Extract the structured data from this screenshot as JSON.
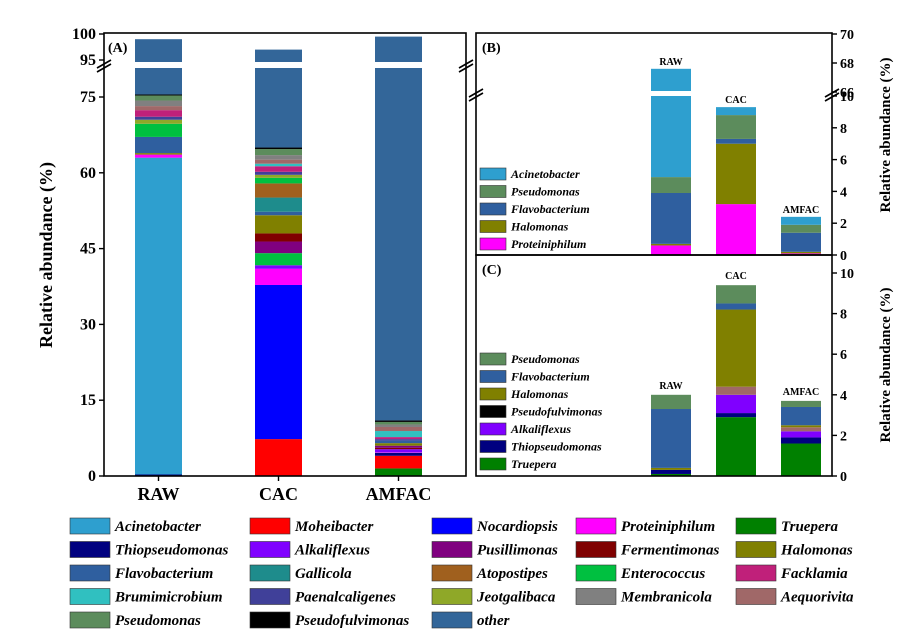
{
  "chart_data": [
    {
      "id": "A",
      "type": "bar",
      "stacked": true,
      "panel_label": "(A)",
      "ylabel": "Relative abundance (%)",
      "categories": [
        "RAW",
        "CAC",
        "AMFAC"
      ],
      "yticks": [
        "0",
        "15",
        "30",
        "45",
        "60",
        "75",
        "95",
        "100"
      ],
      "axis_break": [
        78,
        95
      ],
      "ylim": [
        0,
        100
      ],
      "series": [
        {
          "name": "Truepera",
          "color": "#008000",
          "values": [
            0,
            0,
            1.5
          ]
        },
        {
          "name": "Moheibacter",
          "color": "#ff0000",
          "values": [
            0,
            7.3,
            2.5
          ]
        },
        {
          "name": "Thiopseudomonas",
          "color": "#000080",
          "values": [
            0.3,
            0,
            0.6
          ]
        },
        {
          "name": "Nocardiopsis",
          "color": "#0000ff",
          "values": [
            0,
            30.5,
            0
          ]
        },
        {
          "name": "Acinetobacter",
          "color": "#2e9fcf",
          "values": [
            62.7,
            0,
            0
          ]
        },
        {
          "name": "Proteiniphilum",
          "color": "#ff00ff",
          "values": [
            0.6,
            3.2,
            0.1
          ]
        },
        {
          "name": "Alkaliflexus",
          "color": "#8000ff",
          "values": [
            0,
            0.7,
            0.6
          ]
        },
        {
          "name": "Fermentimonas",
          "color": "#800000",
          "values": [
            0,
            0,
            0.3
          ]
        },
        {
          "name": "Enterococcus",
          "color": "#00c040",
          "values": [
            0,
            2.4,
            0
          ]
        },
        {
          "name": "Pusillimonas",
          "color": "#800080",
          "values": [
            0,
            2.3,
            0.4
          ]
        },
        {
          "name": "Fermentimonas",
          "color": "#800000",
          "values": [
            0,
            1.6,
            0
          ]
        },
        {
          "name": "Halomonas",
          "color": "#808000",
          "values": [
            0.3,
            3.6,
            0.5
          ]
        },
        {
          "name": "Flavobacterium",
          "color": "#2f5f9f",
          "values": [
            3.2,
            0.7,
            0.5
          ]
        },
        {
          "name": "Gallicola",
          "color": "#1e8c8c",
          "values": [
            0,
            2.8,
            0
          ]
        },
        {
          "name": "Atopostipes",
          "color": "#a0601e",
          "values": [
            0,
            2.8,
            0
          ]
        },
        {
          "name": "Enterococcus",
          "color": "#00c040",
          "values": [
            2.6,
            1.1,
            0
          ]
        },
        {
          "name": "Jeotgalibaca",
          "color": "#8fa828",
          "values": [
            0.8,
            0.6,
            0
          ]
        },
        {
          "name": "Paenalcaligenes",
          "color": "#404099",
          "values": [
            0.6,
            0.6,
            0.3
          ]
        },
        {
          "name": "Facklamia",
          "color": "#c0207a",
          "values": [
            1.3,
            1.1,
            0.4
          ]
        },
        {
          "name": "Brumimicrobium",
          "color": "#30c0c0",
          "values": [
            0,
            0.5,
            1.2
          ]
        },
        {
          "name": "Aequorivita",
          "color": "#a06868",
          "values": [
            0.8,
            0.8,
            0.8
          ]
        },
        {
          "name": "Membranicola",
          "color": "#808080",
          "values": [
            1.1,
            0.9,
            0.5
          ]
        },
        {
          "name": "Pseudomonas",
          "color": "#5c8c5c",
          "values": [
            1.0,
            1.2,
            0.5
          ]
        },
        {
          "name": "Pseudofulvimonas",
          "color": "#000000",
          "values": [
            0.2,
            0.3,
            0.3
          ]
        },
        {
          "name": "other",
          "color": "#336699",
          "values": [
            23.5,
            32.0,
            88.5
          ]
        }
      ]
    },
    {
      "id": "B",
      "type": "bar",
      "stacked": true,
      "panel_label": "(B)",
      "ylabel": "Relative abundance (%)",
      "categories": [
        "RAW",
        "CAC",
        "AMFAC"
      ],
      "yticks_low": [
        "0",
        "2",
        "4",
        "6",
        "8",
        "10"
      ],
      "yticks_high": [
        "66",
        "68",
        "70"
      ],
      "axis_break": [
        11,
        66
      ],
      "series": [
        {
          "name": "Proteiniphilum",
          "color": "#ff00ff",
          "values": [
            0.6,
            3.2,
            0.1
          ]
        },
        {
          "name": "Halomonas",
          "color": "#808000",
          "values": [
            0.1,
            3.8,
            0.1
          ]
        },
        {
          "name": "Flavobacterium",
          "color": "#2f5f9f",
          "values": [
            3.2,
            0.3,
            1.2
          ]
        },
        {
          "name": "Pseudomonas",
          "color": "#5c8c5c",
          "values": [
            1.0,
            1.5,
            0.5
          ]
        },
        {
          "name": "Acinetobacter",
          "color": "#2e9fcf",
          "values": [
            62.7,
            0.5,
            0.5
          ]
        }
      ]
    },
    {
      "id": "C",
      "type": "bar",
      "stacked": true,
      "panel_label": "(C)",
      "ylabel": "Relative abundance (%)",
      "categories": [
        "RAW",
        "CAC",
        "AMFAC"
      ],
      "yticks": [
        "0",
        "2",
        "4",
        "6",
        "8",
        "10"
      ],
      "ylim": [
        0,
        10.8
      ],
      "series": [
        {
          "name": "Truepera",
          "color": "#008000",
          "values": [
            0.1,
            2.9,
            1.6
          ]
        },
        {
          "name": "Thiopseudomonas",
          "color": "#000080",
          "values": [
            0.2,
            0.2,
            0.3
          ]
        },
        {
          "name": "Alkaliflexus",
          "color": "#8000ff",
          "values": [
            0,
            0.9,
            0.3
          ]
        },
        {
          "name": "Pseudofulvimonas",
          "color": "#a06868",
          "values": [
            0,
            0.4,
            0.2
          ]
        },
        {
          "name": "Halomonas",
          "color": "#808000",
          "values": [
            0.1,
            3.8,
            0.1
          ]
        },
        {
          "name": "Flavobacterium",
          "color": "#2f5f9f",
          "values": [
            2.9,
            0.3,
            0.9
          ]
        },
        {
          "name": "Pseudomonas",
          "color": "#5c8c5c",
          "values": [
            0.7,
            0.9,
            0.3
          ]
        }
      ]
    }
  ],
  "panel_b_legend": [
    "Acinetobacter",
    "Pseudomonas",
    "Flavobacterium",
    "Halomonas",
    "Proteiniphilum"
  ],
  "panel_c_legend": [
    "Pseudomonas",
    "Flavobacterium",
    "Halomonas",
    "Pseudofulvimonas",
    "Alkaliflexus",
    "Thiopseudomonas",
    "Truepera"
  ],
  "legend": [
    {
      "name": "Acinetobacter",
      "color": "#2e9fcf"
    },
    {
      "name": "Moheibacter",
      "color": "#ff0000"
    },
    {
      "name": "Nocardiopsis",
      "color": "#0000ff"
    },
    {
      "name": "Proteiniphilum",
      "color": "#ff00ff"
    },
    {
      "name": "Truepera",
      "color": "#008000"
    },
    {
      "name": "Thiopseudomonas",
      "color": "#000080"
    },
    {
      "name": "Alkaliflexus",
      "color": "#8000ff"
    },
    {
      "name": "Pusillimonas",
      "color": "#800080"
    },
    {
      "name": "Fermentimonas",
      "color": "#800000"
    },
    {
      "name": "Halomonas",
      "color": "#808000"
    },
    {
      "name": "Flavobacterium",
      "color": "#2f5f9f"
    },
    {
      "name": "Gallicola",
      "color": "#1e8c8c"
    },
    {
      "name": "Atopostipes",
      "color": "#a0601e"
    },
    {
      "name": "Enterococcus",
      "color": "#00c040"
    },
    {
      "name": "Facklamia",
      "color": "#c0207a"
    },
    {
      "name": "Brumimicrobium",
      "color": "#30c0c0"
    },
    {
      "name": "Paenalcaligenes",
      "color": "#404099"
    },
    {
      "name": "Jeotgalibaca",
      "color": "#8fa828"
    },
    {
      "name": "Membranicola",
      "color": "#808080"
    },
    {
      "name": "Aequorivita",
      "color": "#a06868"
    },
    {
      "name": "Pseudomonas",
      "color": "#5c8c5c"
    },
    {
      "name": "Pseudofulvimonas",
      "color": "#000000"
    },
    {
      "name": "other",
      "color": "#336699"
    }
  ]
}
